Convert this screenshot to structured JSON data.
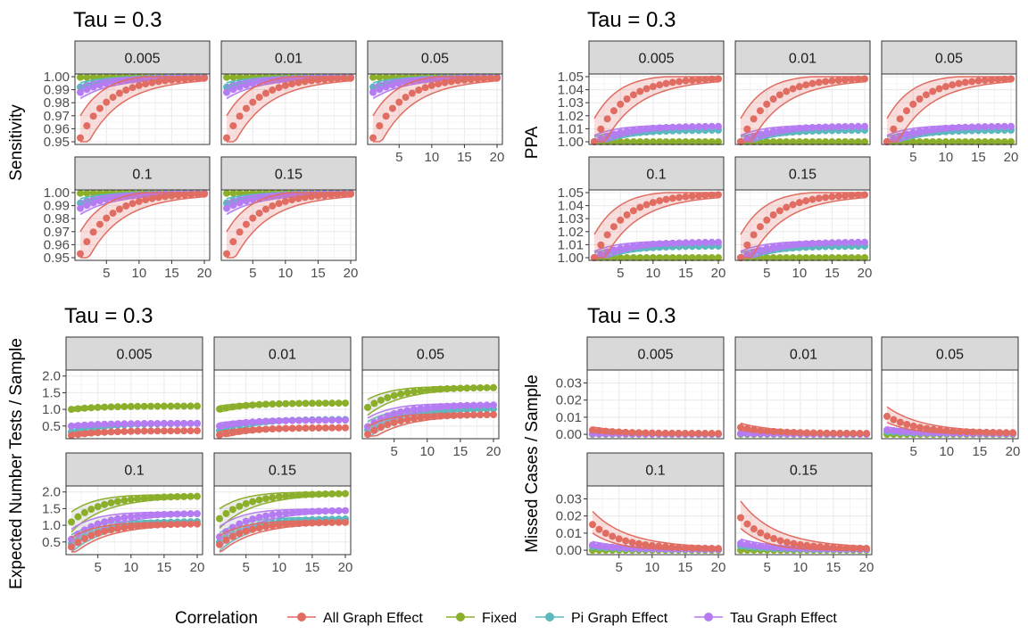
{
  "legend": {
    "title": "Correlation",
    "entries": [
      {
        "label": "All Graph Effect",
        "color": "#E06C62"
      },
      {
        "label": "Fixed",
        "color": "#8CAF2B"
      },
      {
        "label": "Pi Graph Effect",
        "color": "#5CB8BE"
      },
      {
        "label": "Tau Graph Effect",
        "color": "#B57BF2"
      }
    ]
  },
  "chart_data": [
    {
      "type": "line",
      "title": "Tau = 0.3",
      "ylabel": "Sensitivity",
      "facets": [
        "0.005",
        "0.01",
        "0.05",
        "0.1",
        "0.15"
      ],
      "x": {
        "min": 1,
        "max": 20,
        "ticks": [
          "5",
          "10",
          "15",
          "20"
        ]
      },
      "ylim": [
        0.95,
        1.0
      ],
      "yticks": [
        "0.95",
        "0.96",
        "0.97",
        "0.98",
        "0.99",
        "1.00"
      ],
      "grid": true,
      "series_by_facet": {
        "0.005": {
          "All Graph Effect": {
            "start": 0.953,
            "end": 0.9995,
            "band_low_start": 0.95,
            "band_high_start": 0.985
          },
          "Fixed": {
            "start": 0.9995,
            "end": 0.9998
          },
          "Pi Graph Effect": {
            "start": 0.992,
            "end": 0.9995
          },
          "Tau Graph Effect": {
            "start": 0.988,
            "end": 0.9995
          }
        },
        "0.01": {
          "All Graph Effect": {
            "start": 0.953,
            "end": 0.9995
          },
          "Fixed": {
            "start": 0.9995,
            "end": 0.9998
          },
          "Pi Graph Effect": {
            "start": 0.992,
            "end": 0.9995
          },
          "Tau Graph Effect": {
            "start": 0.988,
            "end": 0.9995
          }
        },
        "0.05": {
          "All Graph Effect": {
            "start": 0.953,
            "end": 0.9995
          },
          "Fixed": {
            "start": 0.9995,
            "end": 0.9998
          },
          "Pi Graph Effect": {
            "start": 0.992,
            "end": 0.9995
          },
          "Tau Graph Effect": {
            "start": 0.988,
            "end": 0.9995
          }
        },
        "0.1": {
          "All Graph Effect": {
            "start": 0.953,
            "end": 0.9995
          },
          "Fixed": {
            "start": 0.9995,
            "end": 0.9998
          },
          "Pi Graph Effect": {
            "start": 0.992,
            "end": 0.9995
          },
          "Tau Graph Effect": {
            "start": 0.988,
            "end": 0.9995
          }
        },
        "0.15": {
          "All Graph Effect": {
            "start": 0.953,
            "end": 0.9995
          },
          "Fixed": {
            "start": 0.9995,
            "end": 0.9998
          },
          "Pi Graph Effect": {
            "start": 0.992,
            "end": 0.9995
          },
          "Tau Graph Effect": {
            "start": 0.988,
            "end": 0.9995
          }
        }
      }
    },
    {
      "type": "line",
      "title": "Tau = 0.3",
      "ylabel": "PPA",
      "facets": [
        "0.005",
        "0.01",
        "0.05",
        "0.1",
        "0.15"
      ],
      "x": {
        "min": 1,
        "max": 20,
        "ticks": [
          "5",
          "10",
          "15",
          "20"
        ]
      },
      "ylim": [
        1.0,
        1.05
      ],
      "yticks": [
        "1.00",
        "1.01",
        "1.02",
        "1.03",
        "1.04",
        "1.05"
      ],
      "grid": true,
      "series_by_facet": {
        "0.005": {
          "All Graph Effect": {
            "start": 1.0,
            "end": 1.049
          },
          "Fixed": {
            "start": 1.0,
            "end": 1.0
          },
          "Pi Graph Effect": {
            "start": 1.0,
            "end": 1.009
          },
          "Tau Graph Effect": {
            "start": 1.0,
            "end": 1.012
          }
        },
        "0.01": {
          "All Graph Effect": {
            "start": 1.0,
            "end": 1.049
          },
          "Fixed": {
            "start": 1.0,
            "end": 1.0
          },
          "Pi Graph Effect": {
            "start": 1.0,
            "end": 1.009
          },
          "Tau Graph Effect": {
            "start": 1.0,
            "end": 1.012
          }
        },
        "0.05": {
          "All Graph Effect": {
            "start": 1.0,
            "end": 1.049
          },
          "Fixed": {
            "start": 1.0,
            "end": 1.0
          },
          "Pi Graph Effect": {
            "start": 1.0,
            "end": 1.009
          },
          "Tau Graph Effect": {
            "start": 1.0,
            "end": 1.012
          }
        },
        "0.1": {
          "All Graph Effect": {
            "start": 1.0,
            "end": 1.049
          },
          "Fixed": {
            "start": 1.0,
            "end": 1.0
          },
          "Pi Graph Effect": {
            "start": 1.0,
            "end": 1.009
          },
          "Tau Graph Effect": {
            "start": 1.0,
            "end": 1.012
          }
        },
        "0.15": {
          "All Graph Effect": {
            "start": 1.0,
            "end": 1.049
          },
          "Fixed": {
            "start": 1.0,
            "end": 1.0
          },
          "Pi Graph Effect": {
            "start": 1.0,
            "end": 1.009
          },
          "Tau Graph Effect": {
            "start": 1.0,
            "end": 1.012
          }
        }
      }
    },
    {
      "type": "line",
      "title": "Tau = 0.3",
      "ylabel": "Expected Number Tests / Sample",
      "facets": [
        "0.005",
        "0.01",
        "0.05",
        "0.1",
        "0.15"
      ],
      "x": {
        "min": 1,
        "max": 20,
        "ticks": [
          "5",
          "10",
          "15",
          "20"
        ]
      },
      "ylim": [
        0.2,
        2.1
      ],
      "yticks": [
        "0.5",
        "1.0",
        "1.5",
        "2.0"
      ],
      "grid": true,
      "series_by_facet": {
        "0.005": {
          "All Graph Effect": {
            "start": 0.22,
            "end": 0.36
          },
          "Fixed": {
            "start": 1.0,
            "end": 1.1
          },
          "Pi Graph Effect": {
            "start": 0.33,
            "end": 0.58
          },
          "Tau Graph Effect": {
            "start": 0.5,
            "end": 0.58
          }
        },
        "0.01": {
          "All Graph Effect": {
            "start": 0.23,
            "end": 0.45
          },
          "Fixed": {
            "start": 1.01,
            "end": 1.19
          },
          "Pi Graph Effect": {
            "start": 0.36,
            "end": 0.7
          },
          "Tau Graph Effect": {
            "start": 0.5,
            "end": 0.68
          }
        },
        "0.05": {
          "All Graph Effect": {
            "start": 0.25,
            "end": 0.85
          },
          "Fixed": {
            "start": 1.06,
            "end": 1.66
          },
          "Pi Graph Effect": {
            "start": 0.38,
            "end": 1.02
          },
          "Tau Graph Effect": {
            "start": 0.48,
            "end": 1.14
          }
        },
        "0.1": {
          "All Graph Effect": {
            "start": 0.35,
            "end": 1.05
          },
          "Fixed": {
            "start": 1.1,
            "end": 1.88
          },
          "Pi Graph Effect": {
            "start": 0.45,
            "end": 1.12
          },
          "Tau Graph Effect": {
            "start": 0.58,
            "end": 1.36
          }
        },
        "0.15": {
          "All Graph Effect": {
            "start": 0.42,
            "end": 1.1
          },
          "Fixed": {
            "start": 1.2,
            "end": 1.96
          },
          "Pi Graph Effect": {
            "start": 0.5,
            "end": 1.2
          },
          "Tau Graph Effect": {
            "start": 0.65,
            "end": 1.45
          }
        }
      }
    },
    {
      "type": "line",
      "title": "Tau = 0.3",
      "ylabel": "Missed Cases / Sample",
      "facets": [
        "0.005",
        "0.01",
        "0.05",
        "0.1",
        "0.15"
      ],
      "x": {
        "min": 1,
        "max": 20,
        "ticks": [
          "5",
          "10",
          "15",
          "20"
        ]
      },
      "ylim": [
        -0.001,
        0.036
      ],
      "yticks": [
        "0.00",
        "0.01",
        "0.02",
        "0.03"
      ],
      "grid": true,
      "series_by_facet": {
        "0.005": {
          "All Graph Effect": {
            "start": 0.0025,
            "end": 0.0005
          },
          "Fixed": {
            "start": 0.0,
            "end": 0.0
          },
          "Pi Graph Effect": {
            "start": 0.0002,
            "end": 0.0001
          },
          "Tau Graph Effect": {
            "start": 0.0003,
            "end": 0.0001
          }
        },
        "0.01": {
          "All Graph Effect": {
            "start": 0.004,
            "end": 0.0005
          },
          "Fixed": {
            "start": 0.0,
            "end": 0.0
          },
          "Pi Graph Effect": {
            "start": 0.0003,
            "end": 0.0001
          },
          "Tau Graph Effect": {
            "start": 0.0005,
            "end": 0.0001
          }
        },
        "0.05": {
          "All Graph Effect": {
            "start": 0.0105,
            "end": 0.0008
          },
          "Fixed": {
            "start": 0.0,
            "end": 0.0
          },
          "Pi Graph Effect": {
            "start": 0.0015,
            "end": 0.0002
          },
          "Tau Graph Effect": {
            "start": 0.0025,
            "end": 0.0003
          }
        },
        "0.1": {
          "All Graph Effect": {
            "start": 0.015,
            "end": 0.0008
          },
          "Fixed": {
            "start": 0.0,
            "end": 0.0
          },
          "Pi Graph Effect": {
            "start": 0.002,
            "end": 0.0003
          },
          "Tau Graph Effect": {
            "start": 0.003,
            "end": 0.0004
          }
        },
        "0.15": {
          "All Graph Effect": {
            "start": 0.019,
            "end": 0.0008
          },
          "Fixed": {
            "start": 0.0,
            "end": 0.0
          },
          "Pi Graph Effect": {
            "start": 0.0025,
            "end": 0.0003
          },
          "Tau Graph Effect": {
            "start": 0.004,
            "end": 0.0005
          }
        }
      }
    }
  ]
}
